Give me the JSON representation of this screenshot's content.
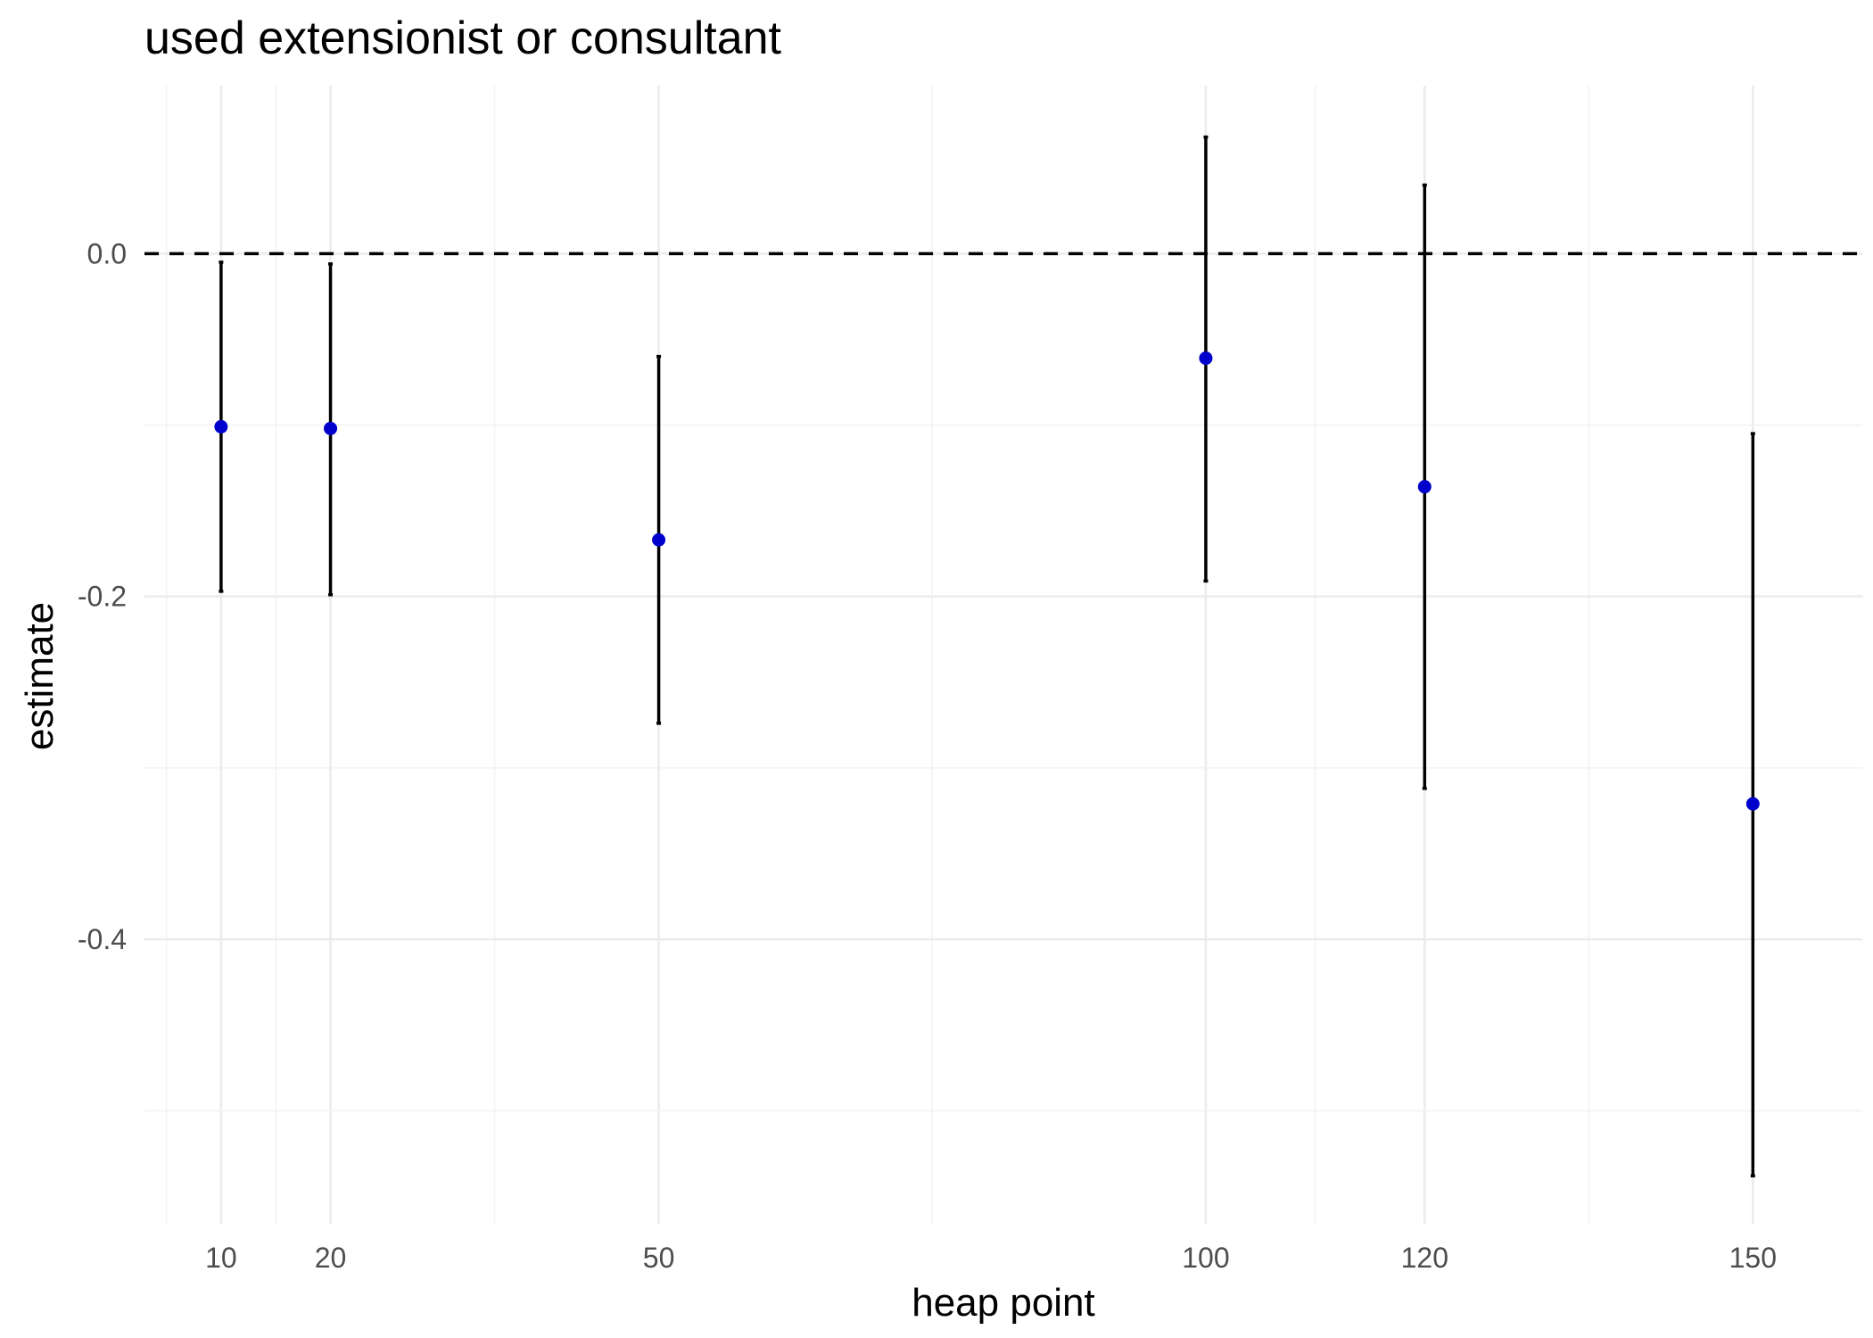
{
  "chart_data": {
    "type": "scatter",
    "title": "used extensionist or consultant",
    "xlabel": "heap point",
    "ylabel": "estimate",
    "x_ticks": [
      10,
      20,
      50,
      100,
      120,
      150
    ],
    "x_tick_labels": [
      "10",
      "20",
      "50",
      "100",
      "120",
      "150"
    ],
    "y_ticks": [
      0.0,
      -0.2,
      -0.4
    ],
    "y_tick_labels": [
      "0.0",
      "-0.2",
      "-0.4"
    ],
    "xlim": [
      3,
      160
    ],
    "ylim": [
      -0.566,
      0.098
    ],
    "reference_line": {
      "y": 0.0,
      "style": "dashed"
    },
    "grid": true,
    "legend": "none",
    "points": [
      {
        "x": 10,
        "estimate": -0.101,
        "lower": -0.197,
        "upper": -0.005
      },
      {
        "x": 20,
        "estimate": -0.102,
        "lower": -0.199,
        "upper": -0.006
      },
      {
        "x": 50,
        "estimate": -0.167,
        "lower": -0.274,
        "upper": -0.06
      },
      {
        "x": 100,
        "estimate": -0.061,
        "lower": -0.191,
        "upper": 0.068
      },
      {
        "x": 120,
        "estimate": -0.136,
        "lower": -0.312,
        "upper": 0.04
      },
      {
        "x": 150,
        "estimate": -0.321,
        "lower": -0.538,
        "upper": -0.105
      }
    ],
    "colors": {
      "point": "#0000cc",
      "errorbar": "#000000",
      "reference_line": "#000000"
    }
  }
}
